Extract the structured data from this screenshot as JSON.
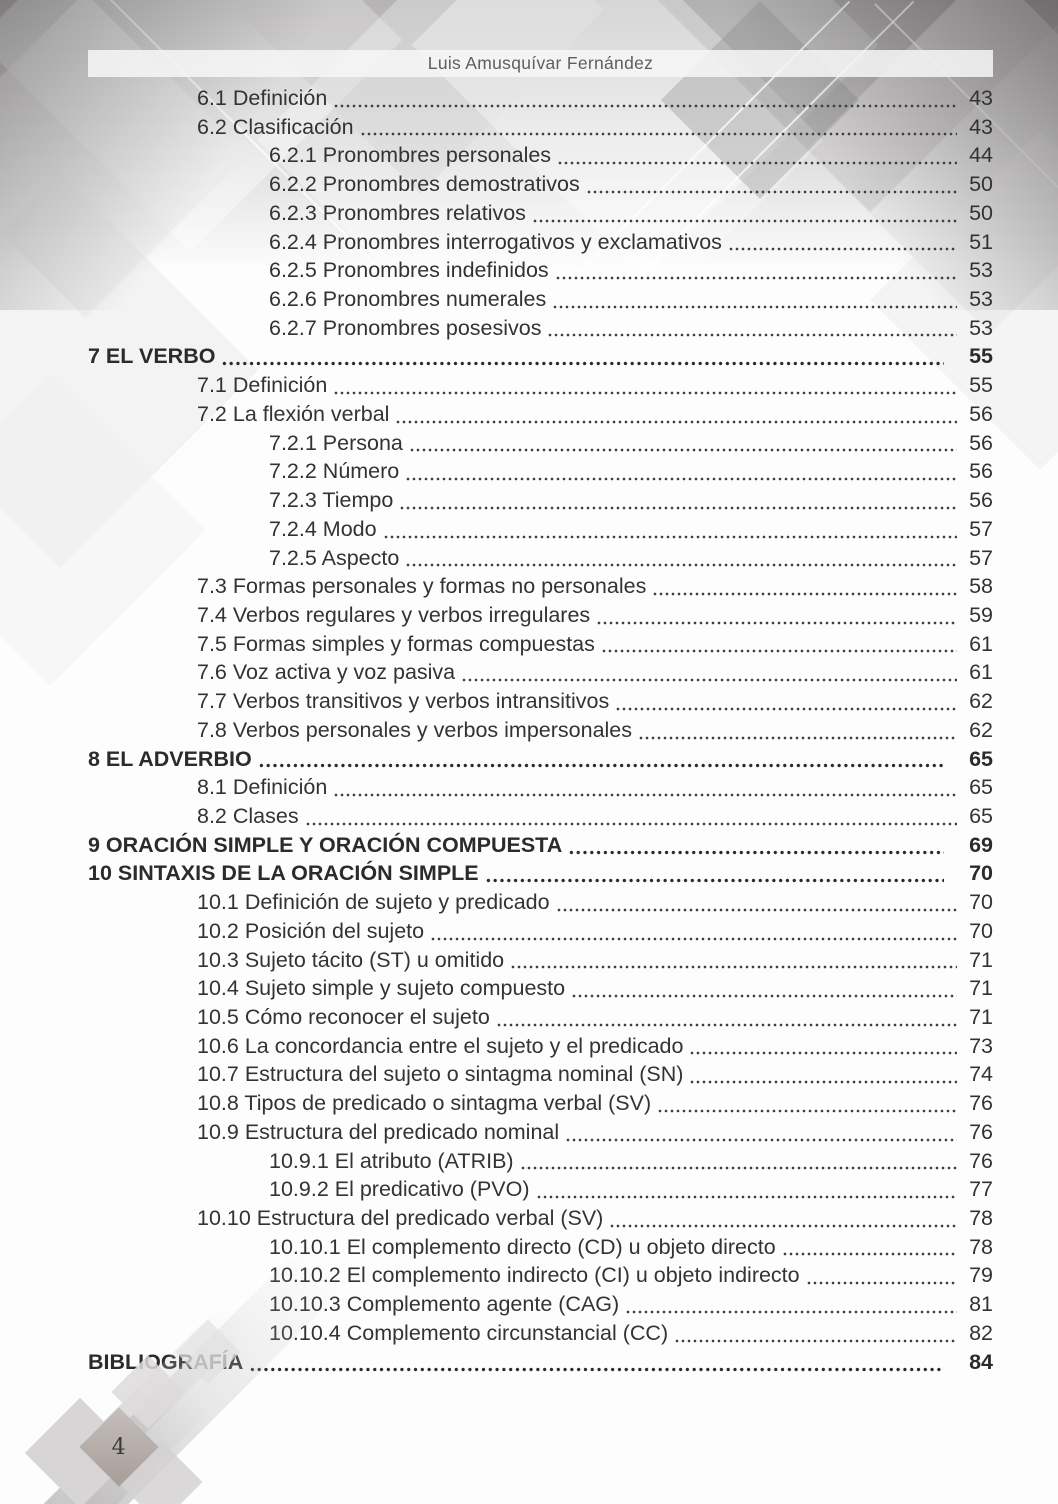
{
  "header": {
    "title": "Luis Amusquívar Fernández"
  },
  "footer": {
    "page_number": "4"
  },
  "colors": {
    "text": "#333333",
    "header_text": "#5e5e5e",
    "leader_dot": "#3f3f3f",
    "page_background": "#fdfdfd",
    "decor_gray": "#b3b1b1",
    "page_number_diamond": "#afa6a2"
  },
  "toc": {
    "entries": [
      {
        "label": "6.1 Definición",
        "page": "43",
        "level": 2,
        "bold": false
      },
      {
        "label": "6.2 Clasificación",
        "page": "43",
        "level": 2,
        "bold": false
      },
      {
        "label": "6.2.1 Pronombres personales",
        "page": "44",
        "level": 3,
        "bold": false
      },
      {
        "label": "6.2.2 Pronombres demostrativos",
        "page": "50",
        "level": 3,
        "bold": false
      },
      {
        "label": "6.2.3 Pronombres relativos",
        "page": "50",
        "level": 3,
        "bold": false
      },
      {
        "label": "6.2.4 Pronombres interrogativos y exclamativos",
        "page": "51",
        "level": 3,
        "bold": false
      },
      {
        "label": "6.2.5 Pronombres indefinidos",
        "page": "53",
        "level": 3,
        "bold": false
      },
      {
        "label": "6.2.6 Pronombres numerales",
        "page": "53",
        "level": 3,
        "bold": false
      },
      {
        "label": "6.2.7 Pronombres posesivos",
        "page": "53",
        "level": 3,
        "bold": false
      },
      {
        "label": "7 EL VERBO",
        "page": "55",
        "level": 1,
        "bold": true
      },
      {
        "label": "7.1 Definición",
        "page": "55",
        "level": 2,
        "bold": false
      },
      {
        "label": "7.2 La flexión verbal",
        "page": "56",
        "level": 2,
        "bold": false
      },
      {
        "label": "7.2.1 Persona",
        "page": "56",
        "level": 3,
        "bold": false
      },
      {
        "label": "7.2.2 Número",
        "page": "56",
        "level": 3,
        "bold": false
      },
      {
        "label": "7.2.3 Tiempo",
        "page": "56",
        "level": 3,
        "bold": false
      },
      {
        "label": "7.2.4 Modo",
        "page": "57",
        "level": 3,
        "bold": false
      },
      {
        "label": "7.2.5 Aspecto",
        "page": "57",
        "level": 3,
        "bold": false
      },
      {
        "label": "7.3 Formas personales y formas no personales",
        "page": "58",
        "level": 2,
        "bold": false
      },
      {
        "label": "7.4 Verbos regulares y verbos irregulares",
        "page": "59",
        "level": 2,
        "bold": false
      },
      {
        "label": "7.5 Formas simples y formas compuestas",
        "page": "61",
        "level": 2,
        "bold": false
      },
      {
        "label": "7.6 Voz activa y voz pasiva",
        "page": "61",
        "level": 2,
        "bold": false
      },
      {
        "label": "7.7 Verbos transitivos y verbos intransitivos",
        "page": "62",
        "level": 2,
        "bold": false
      },
      {
        "label": "7.8 Verbos personales y verbos impersonales",
        "page": "62",
        "level": 2,
        "bold": false
      },
      {
        "label": "8 EL ADVERBIO",
        "page": "65",
        "level": 1,
        "bold": true
      },
      {
        "label": "8.1 Definición",
        "page": "65",
        "level": 2,
        "bold": false
      },
      {
        "label": "8.2 Clases",
        "page": "65",
        "level": 2,
        "bold": false
      },
      {
        "label": "9 ORACIÓN SIMPLE Y ORACIÓN COMPUESTA",
        "page": "69",
        "level": 1,
        "bold": true
      },
      {
        "label": "10 SINTAXIS DE LA ORACIÓN SIMPLE",
        "page": "70",
        "level": 1,
        "bold": true
      },
      {
        "label": "10.1 Definición de sujeto y predicado",
        "page": "70",
        "level": 2,
        "bold": false
      },
      {
        "label": "10.2 Posición del sujeto",
        "page": "70",
        "level": 2,
        "bold": false
      },
      {
        "label": "10.3 Sujeto tácito (ST) u omitido",
        "page": "71",
        "level": 2,
        "bold": false
      },
      {
        "label": "10.4 Sujeto simple y sujeto compuesto",
        "page": "71",
        "level": 2,
        "bold": false
      },
      {
        "label": "10.5 Cómo reconocer el sujeto",
        "page": "71",
        "level": 2,
        "bold": false
      },
      {
        "label": "10.6 La concordancia entre el sujeto y el predicado",
        "page": "73",
        "level": 2,
        "bold": false
      },
      {
        "label": "10.7 Estructura del sujeto o sintagma nominal (SN)",
        "page": "74",
        "level": 2,
        "bold": false
      },
      {
        "label": "10.8 Tipos de predicado o sintagma verbal (SV)",
        "page": "76",
        "level": 2,
        "bold": false
      },
      {
        "label": "10.9 Estructura del predicado nominal",
        "page": "76",
        "level": 2,
        "bold": false
      },
      {
        "label": "10.9.1 El atributo (ATRIB)",
        "page": "76",
        "level": 3,
        "bold": false
      },
      {
        "label": "10.9.2 El predicativo (PVO)",
        "page": "77",
        "level": 3,
        "bold": false
      },
      {
        "label": "10.10 Estructura del predicado verbal (SV)",
        "page": "78",
        "level": 2,
        "bold": false
      },
      {
        "label": "10.10.1 El complemento directo (CD) u objeto directo",
        "page": "78",
        "level": 3,
        "bold": false
      },
      {
        "label": "10.10.2 El complemento indirecto (CI) u objeto indirecto",
        "page": "79",
        "level": 3,
        "bold": false
      },
      {
        "label": "10.10.3 Complemento agente (CAG)",
        "page": "81",
        "level": 3,
        "bold": false
      },
      {
        "label": "10.10.4 Complemento circunstancial (CC)",
        "page": "82",
        "level": 3,
        "bold": false
      },
      {
        "label": "BIBLIOGRAFÍA",
        "page": "84",
        "level": 1,
        "bold": true
      }
    ]
  }
}
